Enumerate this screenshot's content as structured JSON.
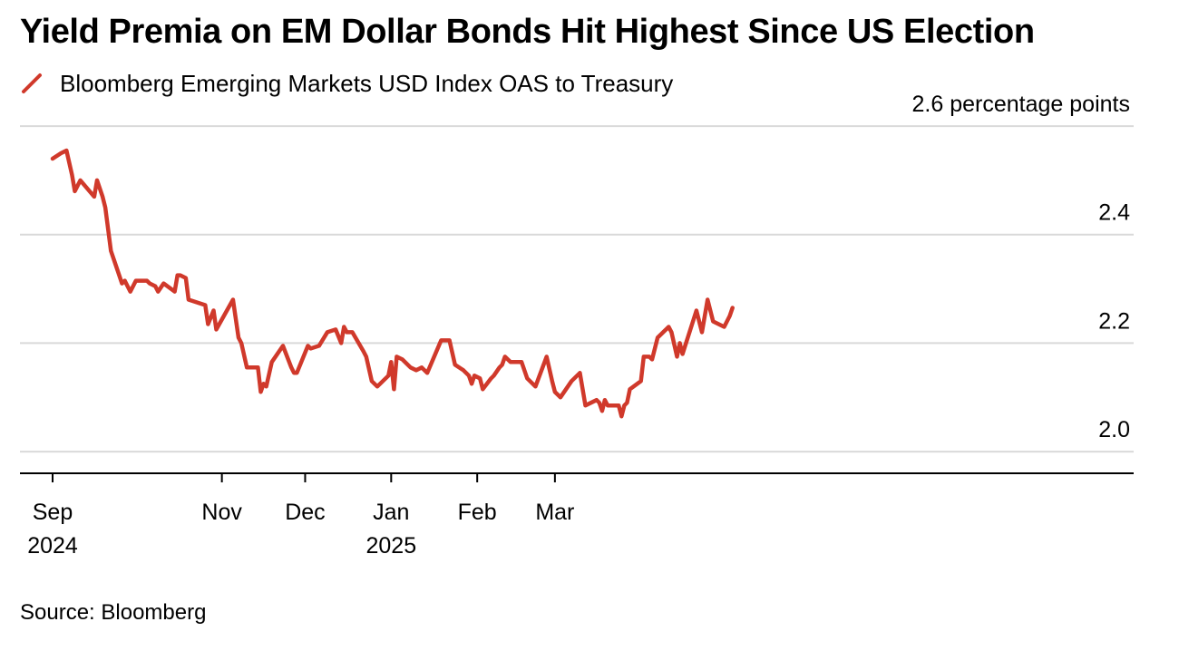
{
  "title": "Yield Premia on EM Dollar Bonds Hit Highest Since US Election",
  "legend": {
    "label": "Bloomberg Emerging Markets USD Index OAS to Treasury",
    "color": "#d0392b"
  },
  "source": "Source: Bloomberg",
  "chart_data": {
    "type": "line",
    "title": "Yield Premia on EM Dollar Bonds Hit Highest Since US Election",
    "ylabel": "percentage points",
    "ylim": [
      1.96,
      2.6
    ],
    "y_ticks": [
      {
        "value": 2.6,
        "label": "2.6 percentage points"
      },
      {
        "value": 2.4,
        "label": "2.4"
      },
      {
        "value": 2.2,
        "label": "2.2"
      },
      {
        "value": 2.0,
        "label": "2.0"
      }
    ],
    "x_ticks": [
      {
        "date": "2024-09-01",
        "label": "Sep",
        "sublabel": "2024"
      },
      {
        "date": "2024-11-01",
        "label": "Nov",
        "sublabel": ""
      },
      {
        "date": "2024-12-01",
        "label": "Dec",
        "sublabel": ""
      },
      {
        "date": "2025-01-01",
        "label": "Jan",
        "sublabel": "2025"
      },
      {
        "date": "2025-02-01",
        "label": "Feb",
        "sublabel": ""
      },
      {
        "date": "2025-03-01",
        "label": "Mar",
        "sublabel": ""
      }
    ],
    "grid": true,
    "legend_position": "top-left",
    "series": [
      {
        "name": "Bloomberg Emerging Markets USD Index OAS to Treasury",
        "color": "#d0392b",
        "points": [
          [
            "2024-09-01",
            2.54
          ],
          [
            "2024-09-04",
            2.55
          ],
          [
            "2024-09-06",
            2.555
          ],
          [
            "2024-09-08",
            2.51
          ],
          [
            "2024-09-09",
            2.48
          ],
          [
            "2024-09-11",
            2.5
          ],
          [
            "2024-09-16",
            2.47
          ],
          [
            "2024-09-17",
            2.5
          ],
          [
            "2024-09-19",
            2.47
          ],
          [
            "2024-09-20",
            2.45
          ],
          [
            "2024-09-22",
            2.37
          ],
          [
            "2024-09-26",
            2.31
          ],
          [
            "2024-09-27",
            2.315
          ],
          [
            "2024-09-29",
            2.295
          ],
          [
            "2024-10-01",
            2.315
          ],
          [
            "2024-10-05",
            2.315
          ],
          [
            "2024-10-06",
            2.31
          ],
          [
            "2024-10-08",
            2.305
          ],
          [
            "2024-10-09",
            2.295
          ],
          [
            "2024-10-11",
            2.31
          ],
          [
            "2024-10-15",
            2.295
          ],
          [
            "2024-10-16",
            2.325
          ],
          [
            "2024-10-17",
            2.325
          ],
          [
            "2024-10-19",
            2.32
          ],
          [
            "2024-10-20",
            2.28
          ],
          [
            "2024-10-26",
            2.27
          ],
          [
            "2024-10-27",
            2.235
          ],
          [
            "2024-10-29",
            2.26
          ],
          [
            "2024-10-30",
            2.225
          ],
          [
            "2024-11-05",
            2.28
          ],
          [
            "2024-11-07",
            2.21
          ],
          [
            "2024-11-08",
            2.2
          ],
          [
            "2024-11-10",
            2.155
          ],
          [
            "2024-11-14",
            2.155
          ],
          [
            "2024-11-15",
            2.11
          ],
          [
            "2024-11-16",
            2.125
          ],
          [
            "2024-11-17",
            2.12
          ],
          [
            "2024-11-19",
            2.165
          ],
          [
            "2024-11-23",
            2.195
          ],
          [
            "2024-11-26",
            2.155
          ],
          [
            "2024-11-27",
            2.145
          ],
          [
            "2024-11-28",
            2.145
          ],
          [
            "2024-12-02",
            2.195
          ],
          [
            "2024-12-03",
            2.19
          ],
          [
            "2024-12-06",
            2.195
          ],
          [
            "2024-12-09",
            2.22
          ],
          [
            "2024-12-12",
            2.225
          ],
          [
            "2024-12-14",
            2.2
          ],
          [
            "2024-12-15",
            2.23
          ],
          [
            "2024-12-16",
            2.22
          ],
          [
            "2024-12-18",
            2.22
          ],
          [
            "2024-12-22",
            2.185
          ],
          [
            "2024-12-23",
            2.175
          ],
          [
            "2024-12-25",
            2.13
          ],
          [
            "2024-12-27",
            2.12
          ],
          [
            "2024-12-31",
            2.14
          ],
          [
            "2025-01-01",
            2.165
          ],
          [
            "2025-01-02",
            2.115
          ],
          [
            "2025-01-03",
            2.175
          ],
          [
            "2025-01-05",
            2.17
          ],
          [
            "2025-01-08",
            2.155
          ],
          [
            "2025-01-10",
            2.15
          ],
          [
            "2025-01-12",
            2.155
          ],
          [
            "2025-01-14",
            2.145
          ],
          [
            "2025-01-19",
            2.205
          ],
          [
            "2025-01-22",
            2.205
          ],
          [
            "2025-01-24",
            2.16
          ],
          [
            "2025-01-27",
            2.15
          ],
          [
            "2025-01-29",
            2.14
          ],
          [
            "2025-01-30",
            2.125
          ],
          [
            "2025-01-31",
            2.14
          ],
          [
            "2025-02-02",
            2.135
          ],
          [
            "2025-02-03",
            2.115
          ],
          [
            "2025-02-06",
            2.135
          ],
          [
            "2025-02-07",
            2.14
          ],
          [
            "2025-02-09",
            2.155
          ],
          [
            "2025-02-10",
            2.16
          ],
          [
            "2025-02-11",
            2.175
          ],
          [
            "2025-02-13",
            2.165
          ],
          [
            "2025-02-17",
            2.165
          ],
          [
            "2025-02-19",
            2.135
          ],
          [
            "2025-02-21",
            2.125
          ],
          [
            "2025-02-22",
            2.12
          ],
          [
            "2025-02-26",
            2.175
          ],
          [
            "2025-02-28",
            2.13
          ],
          [
            "2025-03-01",
            2.11
          ],
          [
            "2025-03-03",
            2.1
          ],
          [
            "2025-03-07",
            2.13
          ],
          [
            "2025-03-10",
            2.145
          ],
          [
            "2025-03-12",
            2.085
          ],
          [
            "2025-03-16",
            2.095
          ],
          [
            "2025-03-17",
            2.09
          ],
          [
            "2025-03-18",
            2.075
          ],
          [
            "2025-03-19",
            2.095
          ],
          [
            "2025-03-20",
            2.085
          ],
          [
            "2025-03-24",
            2.085
          ],
          [
            "2025-03-25",
            2.065
          ],
          [
            "2025-03-26",
            2.085
          ],
          [
            "2025-03-27",
            2.09
          ],
          [
            "2025-03-28",
            2.115
          ],
          [
            "2025-04-01",
            2.13
          ],
          [
            "2025-04-02",
            2.175
          ],
          [
            "2025-04-04",
            2.175
          ],
          [
            "2025-04-05",
            2.17
          ],
          [
            "2025-04-07",
            2.21
          ],
          [
            "2025-04-11",
            2.23
          ],
          [
            "2025-04-12",
            2.22
          ],
          [
            "2025-04-14",
            2.175
          ],
          [
            "2025-04-15",
            2.2
          ],
          [
            "2025-04-16",
            2.18
          ],
          [
            "2025-04-21",
            2.26
          ],
          [
            "2025-04-23",
            2.22
          ],
          [
            "2025-04-25",
            2.28
          ],
          [
            "2025-04-27",
            2.24
          ],
          [
            "2025-05-01",
            2.23
          ],
          [
            "2025-05-03",
            2.25
          ],
          [
            "2025-05-04",
            2.265
          ]
        ]
      }
    ]
  }
}
